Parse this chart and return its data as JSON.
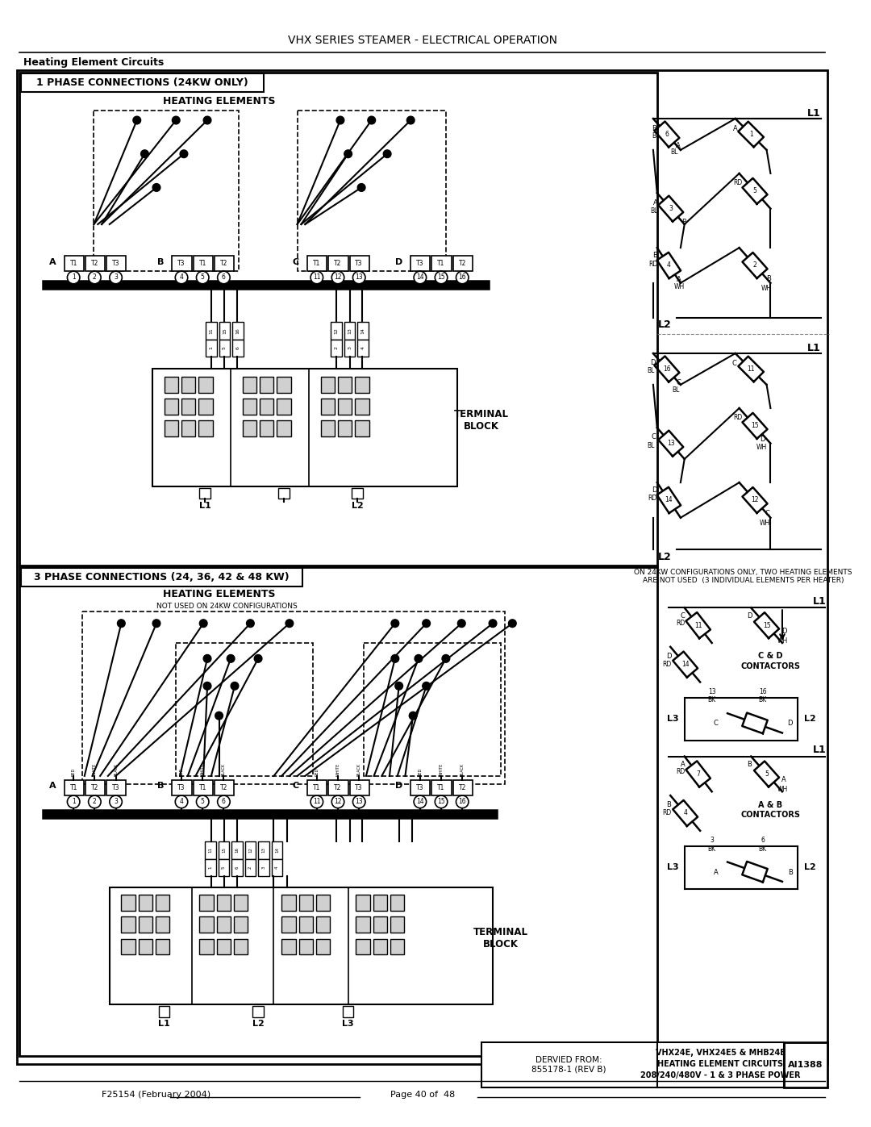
{
  "title": "VHX SERIES STEAMER - ELECTRICAL OPERATION",
  "subtitle": "Heating Element Circuits",
  "footer_left": "F25154 (February 2004)",
  "footer_right": "Page 40 of  48",
  "box1_title": "1 PHASE CONNECTIONS (24KW ONLY)",
  "box2_title": "3 PHASE CONNECTIONS (24, 36, 42 & 48 KW)",
  "heating_elements": "HEATING ELEMENTS",
  "terminal_block": "TERMINAL\nBLOCK",
  "not_used_24kw": "NOT USED ON 24KW CONFIGURATIONS",
  "on_24kw_note": "ON 24KW CONFIGURATIONS ONLY, TWO HEATING ELEMENTS\nARE NOT USED  (3 INDIVIDUAL ELEMENTS PER HEATER)",
  "bottom_right_label1": "VHX24E, VHX24E5 & MHB24E",
  "bottom_right_label2": "HEATING ELEMENT CIRCUITS",
  "bottom_right_label3": "208/240/480V - 1 & 3 PHASE POWER",
  "bottom_right_id": "AI1388",
  "derived_from": "DERVIED FROM:\n855178-1 (REV B)",
  "bg_color": "#ffffff"
}
